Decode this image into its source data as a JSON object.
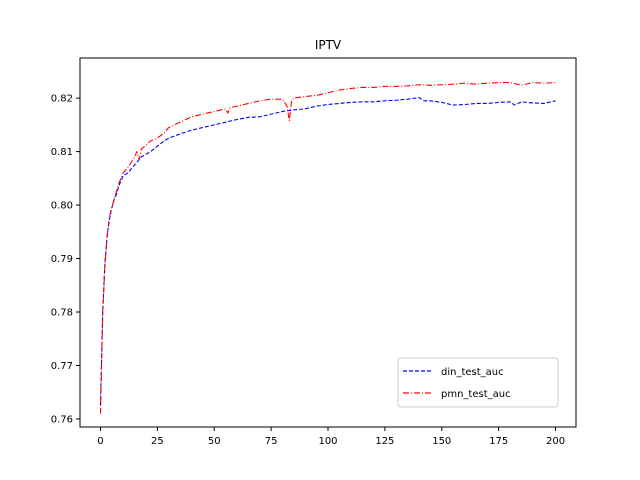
{
  "chart_data": {
    "type": "line",
    "title": "IPTV",
    "xlabel": "",
    "ylabel": "",
    "xlim": [
      -9,
      209
    ],
    "ylim": [
      0.7585,
      0.8275
    ],
    "xticks": [
      0,
      25,
      50,
      75,
      100,
      125,
      150,
      175,
      200
    ],
    "xtick_labels": [
      "0",
      "25",
      "50",
      "75",
      "100",
      "125",
      "150",
      "175",
      "200"
    ],
    "yticks": [
      0.76,
      0.77,
      0.78,
      0.79,
      0.8,
      0.81,
      0.82
    ],
    "ytick_labels": [
      "0.76",
      "0.77",
      "0.78",
      "0.79",
      "0.80",
      "0.81",
      "0.82"
    ],
    "grid": false,
    "legend": {
      "placement": "lower-right",
      "entries": [
        "din_test_auc",
        "pmn_test_auc"
      ]
    },
    "series": [
      {
        "name": "din_test_auc",
        "color": "#0000ff",
        "style": "dashed",
        "x": [
          0,
          1,
          2,
          3,
          4,
          5,
          6,
          7,
          8,
          9,
          10,
          12,
          14,
          16,
          18,
          20,
          22,
          25,
          28,
          30,
          35,
          40,
          45,
          50,
          55,
          60,
          65,
          70,
          75,
          80,
          85,
          90,
          95,
          100,
          105,
          110,
          115,
          120,
          125,
          130,
          135,
          140,
          142,
          145,
          150,
          155,
          160,
          165,
          170,
          175,
          180,
          182,
          185,
          190,
          195,
          200
        ],
        "values": [
          0.7625,
          0.7805,
          0.7895,
          0.7945,
          0.7975,
          0.7995,
          0.801,
          0.802,
          0.8035,
          0.8045,
          0.8055,
          0.806,
          0.807,
          0.808,
          0.809,
          0.8095,
          0.81,
          0.811,
          0.812,
          0.8125,
          0.8133,
          0.814,
          0.8145,
          0.815,
          0.8155,
          0.816,
          0.8164,
          0.8165,
          0.817,
          0.8175,
          0.8178,
          0.818,
          0.8185,
          0.8188,
          0.819,
          0.8192,
          0.8193,
          0.8193,
          0.8195,
          0.8196,
          0.8198,
          0.8201,
          0.8195,
          0.8195,
          0.8192,
          0.8187,
          0.8188,
          0.819,
          0.819,
          0.8192,
          0.8193,
          0.8187,
          0.8193,
          0.8191,
          0.819,
          0.8195
        ]
      },
      {
        "name": "pmn_test_auc",
        "color": "#ff0000",
        "style": "dashdot",
        "x": [
          0,
          1,
          2,
          3,
          4,
          5,
          6,
          7,
          8,
          9,
          10,
          12,
          14,
          15,
          16,
          17,
          18,
          20,
          22,
          25,
          28,
          30,
          35,
          40,
          45,
          50,
          55,
          56,
          57,
          60,
          65,
          70,
          75,
          80,
          82,
          83,
          84,
          85,
          90,
          95,
          100,
          105,
          110,
          115,
          120,
          125,
          130,
          135,
          140,
          145,
          150,
          155,
          160,
          165,
          170,
          175,
          180,
          185,
          190,
          195,
          200
        ],
        "values": [
          0.761,
          0.78,
          0.789,
          0.7945,
          0.798,
          0.7995,
          0.8012,
          0.8025,
          0.804,
          0.805,
          0.806,
          0.807,
          0.8083,
          0.809,
          0.81,
          0.8085,
          0.8105,
          0.8112,
          0.812,
          0.8125,
          0.8135,
          0.8145,
          0.8155,
          0.8165,
          0.817,
          0.8175,
          0.818,
          0.8172,
          0.8182,
          0.8185,
          0.819,
          0.8195,
          0.8198,
          0.8198,
          0.8185,
          0.8158,
          0.8195,
          0.82,
          0.8203,
          0.8205,
          0.821,
          0.8215,
          0.8218,
          0.822,
          0.822,
          0.8222,
          0.8222,
          0.8223,
          0.8225,
          0.8224,
          0.8225,
          0.8226,
          0.8228,
          0.8226,
          0.8228,
          0.8229,
          0.8229,
          0.8224,
          0.8229,
          0.8228,
          0.8229
        ]
      }
    ]
  }
}
